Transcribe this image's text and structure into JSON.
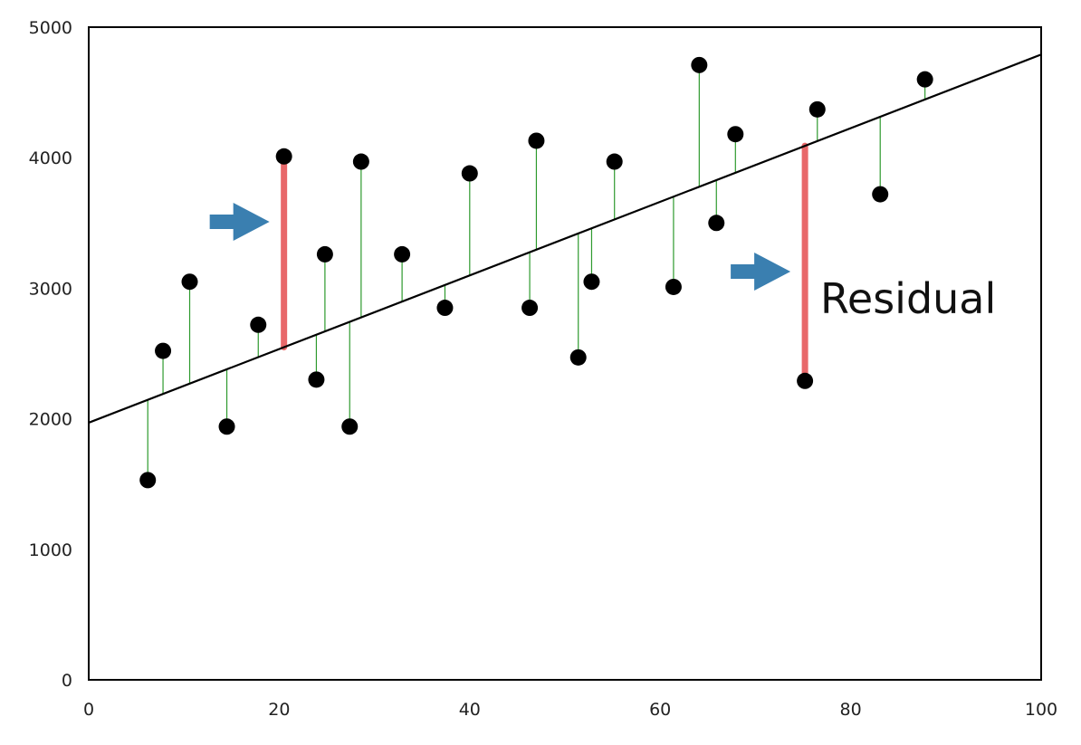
{
  "chart_data": {
    "type": "scatter",
    "title": "",
    "xlabel": "",
    "ylabel": "",
    "xlim": [
      0,
      100
    ],
    "ylim": [
      0,
      5000
    ],
    "grid": false,
    "x_ticks": [
      "0",
      "20",
      "40",
      "60",
      "80",
      "100"
    ],
    "y_ticks": [
      "0",
      "1000",
      "2000",
      "3000",
      "4000",
      "5000"
    ],
    "regression_line": {
      "intercept": 1970,
      "slope": 28.2
    },
    "points": [
      {
        "x": 6.2,
        "y": 1530
      },
      {
        "x": 7.8,
        "y": 2520
      },
      {
        "x": 10.6,
        "y": 3050
      },
      {
        "x": 14.5,
        "y": 1940
      },
      {
        "x": 17.8,
        "y": 2720
      },
      {
        "x": 20.5,
        "y": 4010
      },
      {
        "x": 23.9,
        "y": 2300
      },
      {
        "x": 24.8,
        "y": 3260
      },
      {
        "x": 27.4,
        "y": 1940
      },
      {
        "x": 28.6,
        "y": 3970
      },
      {
        "x": 32.9,
        "y": 3260
      },
      {
        "x": 37.4,
        "y": 2850
      },
      {
        "x": 40.0,
        "y": 3880
      },
      {
        "x": 46.3,
        "y": 2850
      },
      {
        "x": 47.0,
        "y": 4130
      },
      {
        "x": 51.4,
        "y": 2470
      },
      {
        "x": 52.8,
        "y": 3050
      },
      {
        "x": 55.2,
        "y": 3970
      },
      {
        "x": 61.4,
        "y": 3010
      },
      {
        "x": 64.1,
        "y": 4710
      },
      {
        "x": 65.9,
        "y": 3500
      },
      {
        "x": 67.9,
        "y": 4180
      },
      {
        "x": 75.2,
        "y": 2290
      },
      {
        "x": 76.5,
        "y": 4370
      },
      {
        "x": 83.1,
        "y": 3720
      },
      {
        "x": 87.8,
        "y": 4600
      }
    ],
    "highlighted_residuals": [
      5,
      22
    ],
    "annotations": [
      {
        "text": "Residual"
      }
    ],
    "colors": {
      "points": "#000000",
      "line": "#000000",
      "residual": "#2e9a2e",
      "highlight": "#e8686a",
      "arrow": "#3a7fb0"
    }
  }
}
